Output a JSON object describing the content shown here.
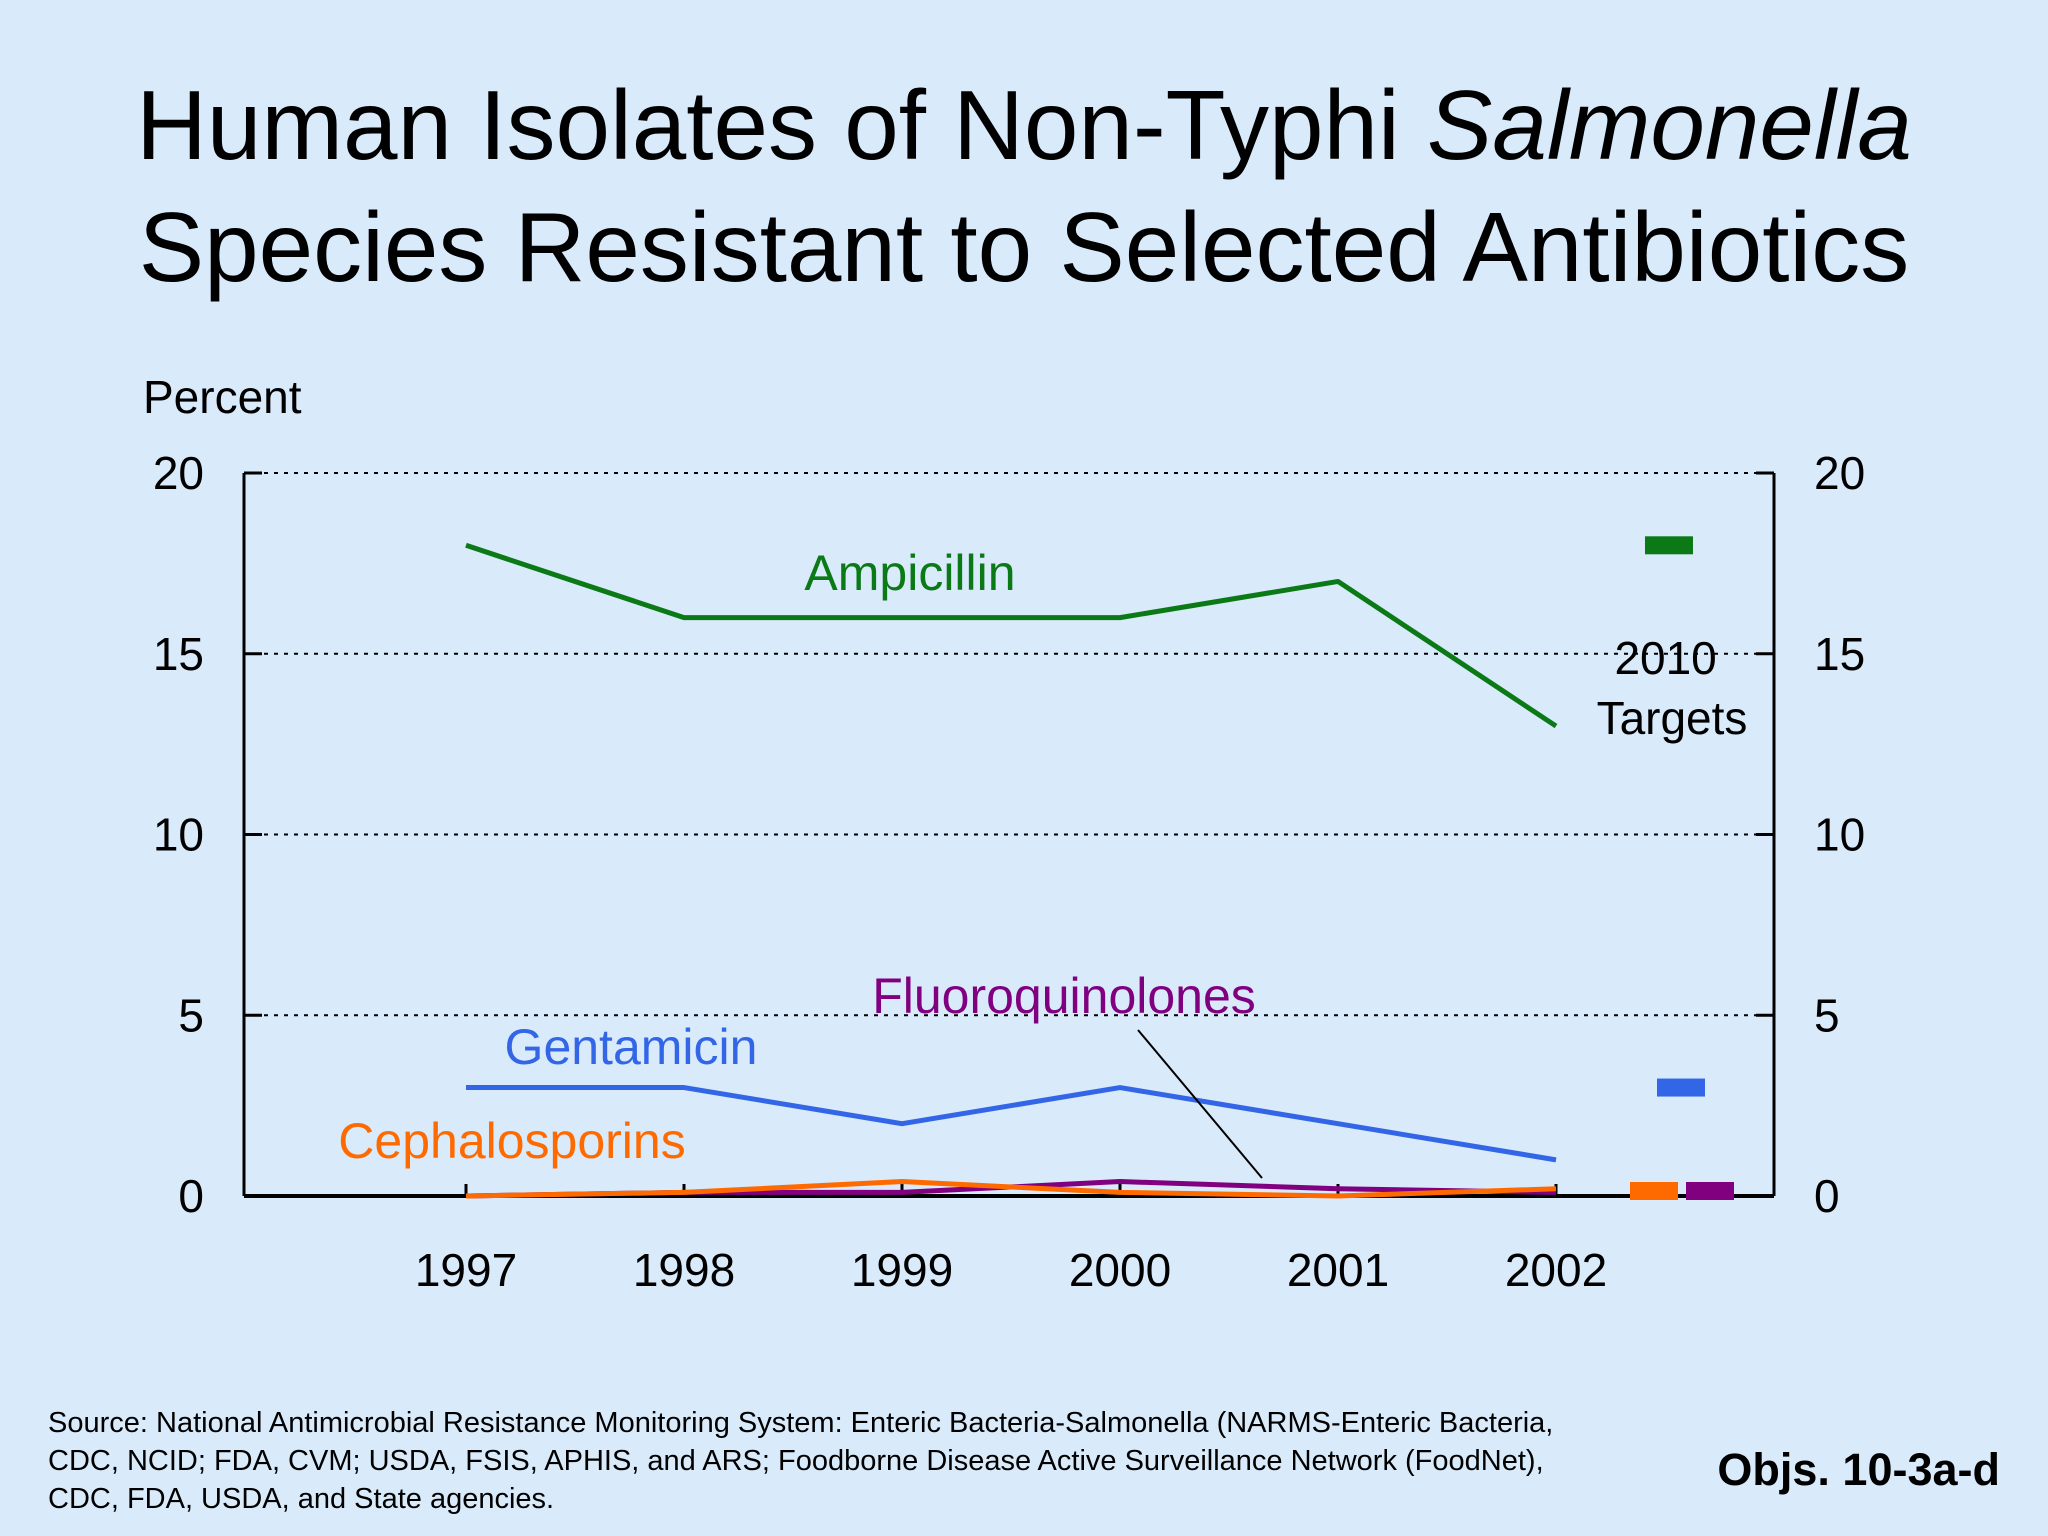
{
  "slide": {
    "title_line1_prefix": "Human Isolates of Non-Typhi ",
    "title_line1_italic": "Salmonella",
    "title_line2": "Species Resistant to Selected Antibiotics",
    "source": "Source: National Antimicrobial Resistance Monitoring System: Enteric Bacteria-Salmonella (NARMS-Enteric Bacteria, CDC, NCID; FDA, CVM; USDA, FSIS, APHIS, and ARS; Foodborne Disease Active Surveillance Network (FoodNet), CDC, FDA, USDA, and State agencies.",
    "objectives": "Objs. 10-3a-d"
  },
  "chart_data": {
    "type": "line",
    "ylabel": "Percent",
    "ylim": [
      0,
      20
    ],
    "yticks": [
      0,
      5,
      10,
      15,
      20
    ],
    "grid": "horizontal dotted",
    "right_axis": true,
    "x": [
      "1997",
      "1998",
      "1999",
      "2000",
      "2001",
      "2002"
    ],
    "series": [
      {
        "name": "Ampicillin",
        "color": "#0b7a16",
        "values": [
          18,
          16,
          16,
          16,
          17,
          13
        ]
      },
      {
        "name": "Gentamicin",
        "color": "#3366e6",
        "values": [
          3,
          3,
          2,
          3,
          2,
          1
        ]
      },
      {
        "name": "Fluoroquinolones",
        "color": "#800080",
        "values": [
          0,
          0.1,
          0.1,
          0.4,
          0.2,
          0.1
        ]
      },
      {
        "name": "Cephalosporins",
        "color": "#ff6a00",
        "values": [
          0,
          0.1,
          0.4,
          0.1,
          0,
          0.2
        ]
      }
    ],
    "targets_label": "2010 Targets",
    "targets": [
      {
        "series": "Ampicillin",
        "value": 18,
        "color": "#0b7a16"
      },
      {
        "series": "Gentamicin",
        "value": 3,
        "color": "#3366e6"
      },
      {
        "series": "Cephalosporins",
        "value": 0,
        "color": "#ff6a00"
      },
      {
        "series": "Fluoroquinolones",
        "value": 0,
        "color": "#800080"
      }
    ]
  }
}
